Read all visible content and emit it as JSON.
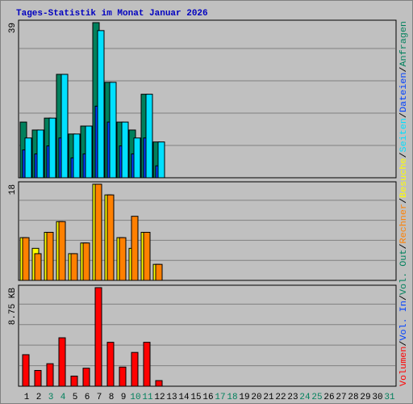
{
  "title": "Tages-Statistik im Monat Januar 2026",
  "legend_separator": "/",
  "chart_data": [
    {
      "type": "bar",
      "ylim": [
        0,
        39
      ],
      "yticks": [
        39
      ],
      "series": [
        {
          "name": "Anfragen",
          "color": "#00805c",
          "values": [
            14,
            12,
            15,
            26,
            11,
            13,
            39,
            24,
            14,
            12,
            21,
            9,
            null,
            null,
            null,
            null,
            null,
            null,
            null,
            null,
            null,
            null,
            null,
            null,
            null,
            null,
            null,
            null,
            null,
            null,
            null
          ]
        },
        {
          "name": "Dateien",
          "color": "#0040ff",
          "values": [
            7,
            6,
            8,
            10,
            5,
            6,
            18,
            14,
            8,
            6,
            10,
            3,
            null,
            null,
            null,
            null,
            null,
            null,
            null,
            null,
            null,
            null,
            null,
            null,
            null,
            null,
            null,
            null,
            null,
            null,
            null
          ]
        },
        {
          "name": "Seiten",
          "color": "#00e0ff",
          "values": [
            10,
            12,
            15,
            26,
            11,
            13,
            37,
            24,
            14,
            10,
            21,
            9,
            null,
            null,
            null,
            null,
            null,
            null,
            null,
            null,
            null,
            null,
            null,
            null,
            null,
            null,
            null,
            null,
            null,
            null,
            null
          ]
        }
      ]
    },
    {
      "type": "bar",
      "ylim": [
        0,
        18
      ],
      "yticks": [
        18
      ],
      "series": [
        {
          "name": "Besuche",
          "color": "#ffff00",
          "values": [
            8,
            6,
            9,
            11,
            5,
            7,
            18,
            16,
            8,
            6,
            9,
            3,
            null,
            null,
            null,
            null,
            null,
            null,
            null,
            null,
            null,
            null,
            null,
            null,
            null,
            null,
            null,
            null,
            null,
            null,
            null
          ]
        },
        {
          "name": "Rechner",
          "color": "#ff8000",
          "values": [
            8,
            5,
            9,
            11,
            5,
            7,
            18,
            16,
            8,
            12,
            9,
            3,
            null,
            null,
            null,
            null,
            null,
            null,
            null,
            null,
            null,
            null,
            null,
            null,
            null,
            null,
            null,
            null,
            null,
            null,
            null
          ]
        }
      ]
    },
    {
      "type": "bar",
      "ylim": [
        0,
        8.75
      ],
      "yticks": [
        {
          "value": 8.75,
          "label": "8.75 KB"
        }
      ],
      "categories": [
        "1",
        "2",
        "3",
        "4",
        "5",
        "6",
        "7",
        "8",
        "9",
        "10",
        "11",
        "12",
        "13",
        "14",
        "15",
        "16",
        "17",
        "18",
        "19",
        "20",
        "21",
        "22",
        "23",
        "24",
        "25",
        "26",
        "27",
        "28",
        "29",
        "30",
        "31"
      ],
      "category_colors": [
        "#000000",
        "#000000",
        "#00805c",
        "#00805c",
        "#000000",
        "#000000",
        "#000000",
        "#000000",
        "#000000",
        "#00805c",
        "#00805c",
        "#000000",
        "#000000",
        "#000000",
        "#000000",
        "#000000",
        "#00805c",
        "#00805c",
        "#000000",
        "#000000",
        "#000000",
        "#000000",
        "#000000",
        "#00805c",
        "#00805c",
        "#000000",
        "#000000",
        "#000000",
        "#000000",
        "#000000",
        "#00805c"
      ],
      "series": [
        {
          "name": "Volumen",
          "color": "#ff0000",
          "values": [
            2.8,
            1.4,
            2.0,
            4.3,
            0.9,
            1.6,
            8.75,
            3.9,
            1.7,
            3.0,
            3.9,
            0.5,
            null,
            null,
            null,
            null,
            null,
            null,
            null,
            null,
            null,
            null,
            null,
            null,
            null,
            null,
            null,
            null,
            null,
            null,
            null
          ]
        },
        {
          "name": "Vol. In",
          "color": "#0040ff",
          "values": [
            null,
            null,
            null,
            null,
            null,
            null,
            null,
            null,
            null,
            null,
            null,
            null,
            null,
            null,
            null,
            null,
            null,
            null,
            null,
            null,
            null,
            null,
            null,
            null,
            null,
            null,
            null,
            null,
            null,
            null,
            null
          ]
        },
        {
          "name": "Vol. Out",
          "color": "#00805c",
          "values": [
            null,
            null,
            null,
            null,
            null,
            null,
            null,
            null,
            null,
            null,
            null,
            null,
            null,
            null,
            null,
            null,
            null,
            null,
            null,
            null,
            null,
            null,
            null,
            null,
            null,
            null,
            null,
            null,
            null,
            null,
            null
          ]
        }
      ]
    }
  ]
}
